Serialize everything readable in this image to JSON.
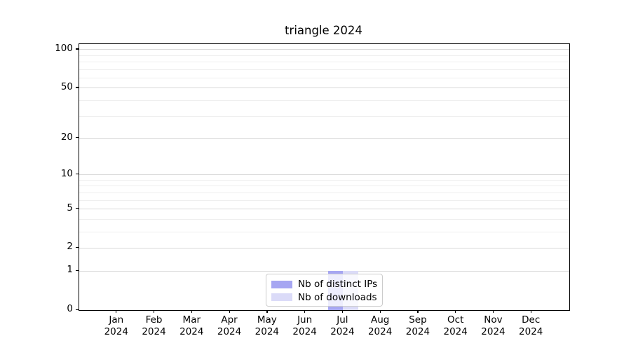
{
  "title": "triangle 2024",
  "chart_data": {
    "type": "bar",
    "title": "triangle 2024",
    "x_year": "2024",
    "categories": [
      "Jan",
      "Feb",
      "Mar",
      "Apr",
      "May",
      "Jun",
      "Jul",
      "Aug",
      "Sep",
      "Oct",
      "Nov",
      "Dec"
    ],
    "series": [
      {
        "name": "Nb of distinct IPs",
        "color": "#a6a6f2",
        "values": [
          0,
          0,
          0,
          0,
          0,
          0,
          1,
          0,
          0,
          0,
          0,
          0
        ]
      },
      {
        "name": "Nb of downloads",
        "color": "#dbdbf8",
        "values": [
          0,
          0,
          0,
          0,
          0,
          0,
          1,
          0,
          0,
          0,
          0,
          0
        ]
      }
    ],
    "y_scale": "log1p",
    "y_major_ticks": [
      0,
      1,
      2,
      5,
      10,
      20,
      50,
      100
    ],
    "y_minor_ticks": [
      3,
      4,
      6,
      7,
      8,
      9,
      30,
      40,
      60,
      70,
      80,
      90
    ],
    "y_top_value": 110.4,
    "ylim": [
      0,
      110.4
    ],
    "grid": "y",
    "legend_position": "lower center"
  }
}
